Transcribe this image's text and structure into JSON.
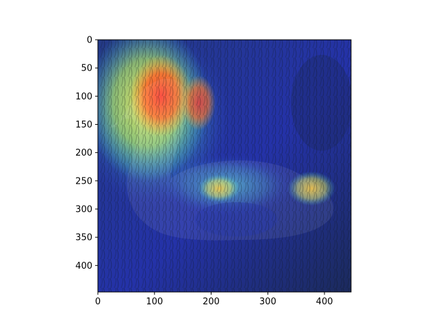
{
  "figure": {
    "image_description_icon": "heatmap-overlay-bird-in-grass",
    "axes": {
      "x": {
        "ticks": [
          0,
          100,
          200,
          300,
          400
        ],
        "range": [
          0,
          447
        ]
      },
      "y": {
        "ticks": [
          0,
          50,
          100,
          150,
          200,
          250,
          300,
          350,
          400
        ],
        "range": [
          0,
          447
        ],
        "inverted": true
      }
    },
    "colors": {
      "grass_dark": "#1c2a33",
      "overlay_blue": "#2b3bd6",
      "hot_red": "#f0443a",
      "warm_yellow": "#f2e35a",
      "cool_cyan": "#47d4c8"
    }
  }
}
